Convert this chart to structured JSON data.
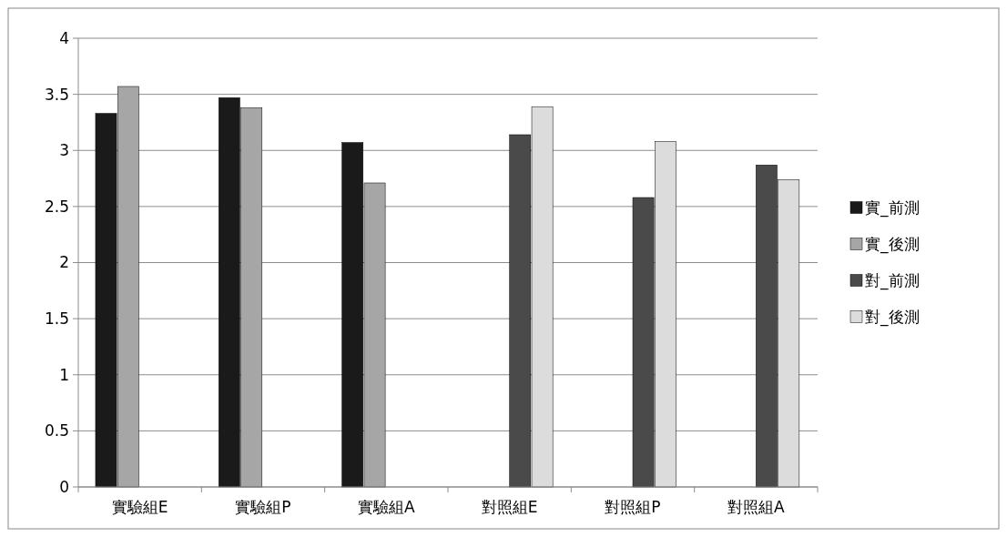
{
  "chart_data": {
    "type": "bar",
    "categories": [
      "實驗組E",
      "實驗組P",
      "實驗組A",
      "對照組E",
      "對照組P",
      "對照組A"
    ],
    "series": [
      {
        "name": "實_前測",
        "color": "#1a1a1a",
        "values": [
          3.33,
          3.47,
          3.07,
          null,
          null,
          null
        ]
      },
      {
        "name": "實_後測",
        "color": "#a6a6a6",
        "values": [
          3.57,
          3.38,
          2.71,
          null,
          null,
          null
        ]
      },
      {
        "name": "對_前測",
        "color": "#4a4a4a",
        "values": [
          null,
          null,
          null,
          3.14,
          2.58,
          2.87
        ]
      },
      {
        "name": "對_後測",
        "color": "#dcdcdc",
        "values": [
          null,
          null,
          null,
          3.39,
          3.08,
          2.74
        ]
      }
    ],
    "ylim": [
      0,
      4
    ],
    "yticks": [
      0,
      {
        "value": 0.5,
        "label": "0.5"
      },
      1,
      {
        "value": 1.5,
        "label": "1.5"
      },
      2,
      {
        "value": 2.5,
        "label": "2.5"
      },
      3,
      {
        "value": 3.5,
        "label": "3.5"
      },
      4
    ],
    "grid": "y",
    "legend": "right"
  }
}
